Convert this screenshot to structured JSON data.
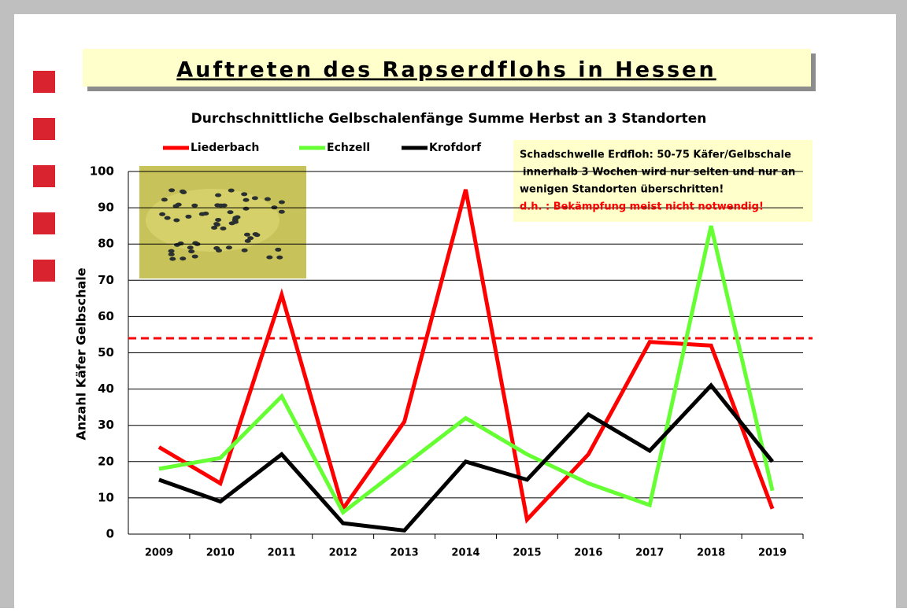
{
  "chart_data": {
    "type": "line",
    "title": "Auftreten des Rapserdflohs in Hessen",
    "subtitle": "Durchschnittliche Gelbschalenfänge Summe Herbst an 3 Standorten",
    "y_label": "Anzahl Käfer Gelbschale",
    "annotation": [
      "Schadschwelle Erdfloh: 50-75 Käfer/Gelbschale",
      "innerhalb 3 Wochen wird nur selten und nur an",
      "wenigen Standorten überschritten!",
      "d.h. : Bekämpfung meist nicht notwendig!"
    ],
    "threshold": 54,
    "threshold_color": "#ff0000",
    "categories": [
      "2009",
      "2010",
      "2011",
      "2012",
      "2013",
      "2014",
      "2015",
      "2016",
      "2017",
      "2018",
      "2019"
    ],
    "series": [
      {
        "name": "Liederbach",
        "color": "#ff0000",
        "values": [
          24,
          14,
          66,
          7,
          31,
          95,
          4,
          22,
          53,
          52,
          7
        ]
      },
      {
        "name": "Echzell",
        "color": "#66ff33",
        "values": [
          18,
          21,
          38,
          6,
          19,
          32,
          22,
          14,
          8,
          85,
          12
        ]
      },
      {
        "name": "Krofdorf",
        "color": "#000000",
        "values": [
          15,
          9,
          22,
          3,
          1,
          20,
          15,
          33,
          23,
          41,
          20
        ]
      }
    ],
    "ylim": [
      0,
      100
    ],
    "yticks": [
      0,
      10,
      20,
      30,
      40,
      50,
      60,
      70,
      80,
      90,
      100
    ],
    "grid": true
  }
}
